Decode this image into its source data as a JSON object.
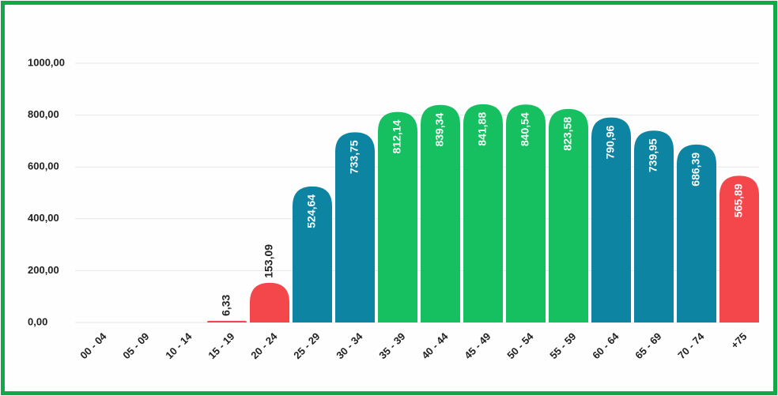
{
  "chart_data": {
    "type": "bar",
    "categories": [
      "00 - 04",
      "05 - 09",
      "10 - 14",
      "15 - 19",
      "20 - 24",
      "25 - 29",
      "30 - 34",
      "35 - 39",
      "40 - 44",
      "45 - 49",
      "50 - 54",
      "55 - 59",
      "60 - 64",
      "65 - 69",
      "70 - 74",
      "+75"
    ],
    "values": [
      null,
      null,
      null,
      6.33,
      153.09,
      524.64,
      733.75,
      812.14,
      839.34,
      841.88,
      840.54,
      823.58,
      790.96,
      739.95,
      686.39,
      565.89
    ],
    "value_labels": [
      null,
      null,
      null,
      "6,33",
      "153,09",
      "524,64",
      "733,75",
      "812,14",
      "839,34",
      "841,88",
      "840,54",
      "823,58",
      "790,96",
      "739,95",
      "686,39",
      "565,89"
    ],
    "colors": [
      null,
      null,
      null,
      "#f4474c",
      "#f4474c",
      "#0e84a3",
      "#0e84a3",
      "#16c060",
      "#16c060",
      "#16c060",
      "#16c060",
      "#16c060",
      "#0e84a3",
      "#0e84a3",
      "#0e84a3",
      "#f4474c"
    ],
    "ylim": [
      0,
      1000
    ],
    "yticks": [
      {
        "value": 0,
        "label": "0,00"
      },
      {
        "value": 200,
        "label": "200,00"
      },
      {
        "value": 400,
        "label": "400,00"
      },
      {
        "value": 600,
        "label": "600,00"
      },
      {
        "value": 800,
        "label": "800,00"
      },
      {
        "value": 1000,
        "label": "1000,00"
      }
    ],
    "grid": true
  }
}
